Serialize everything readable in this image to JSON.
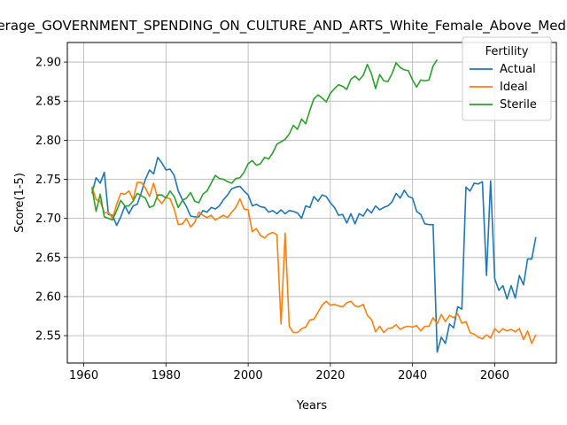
{
  "chart_data": {
    "type": "line",
    "title": "Average_GOVERNMENT_SPENDING_ON_CULTURE_AND_ARTS_White_Female_Above_Median",
    "xlabel": "Years",
    "ylabel": "Score(1-5)",
    "xlim": [
      1956,
      2075
    ],
    "ylim": [
      2.515,
      2.925
    ],
    "xticks": [
      1960,
      1980,
      2000,
      2020,
      2040,
      2060
    ],
    "yticks": [
      2.55,
      2.6,
      2.65,
      2.7,
      2.75,
      2.8,
      2.85,
      2.9
    ],
    "grid": true,
    "legend": {
      "title": "Fertility",
      "position": "top-right"
    },
    "series": [
      {
        "name": "Actual",
        "color": "#1f77b4",
        "x": [
          1962,
          1963,
          1964,
          1965,
          1966,
          1967,
          1968,
          1969,
          1970,
          1971,
          1972,
          1973,
          1974,
          1975,
          1976,
          1977,
          1978,
          1979,
          1980,
          1981,
          1982,
          1983,
          1984,
          1985,
          1986,
          1987,
          1988,
          1989,
          1990,
          1991,
          1992,
          1993,
          1994,
          1995,
          1996,
          1997,
          1998,
          1999,
          2000,
          2001,
          2002,
          2003,
          2004,
          2005,
          2006,
          2007,
          2008,
          2009,
          2010,
          2011,
          2012,
          2013,
          2014,
          2015,
          2016,
          2017,
          2018,
          2019,
          2020,
          2021,
          2022,
          2023,
          2024,
          2025,
          2026,
          2027,
          2028,
          2029,
          2030,
          2031,
          2032,
          2033,
          2034,
          2035,
          2036,
          2037,
          2038,
          2039,
          2040,
          2041,
          2042,
          2043,
          2044,
          2045,
          2046,
          2047,
          2048,
          2049,
          2050,
          2051,
          2052,
          2053,
          2054,
          2055,
          2056,
          2057,
          2058,
          2059,
          2060,
          2061,
          2062,
          2063,
          2064,
          2065,
          2066,
          2067,
          2068,
          2069,
          2070
        ],
        "y": [
          2.732,
          2.752,
          2.745,
          2.759,
          2.705,
          2.704,
          2.691,
          2.702,
          2.716,
          2.706,
          2.716,
          2.718,
          2.733,
          2.75,
          2.762,
          2.757,
          2.778,
          2.771,
          2.762,
          2.763,
          2.755,
          2.735,
          2.724,
          2.715,
          2.703,
          2.702,
          2.702,
          2.71,
          2.708,
          2.714,
          2.712,
          2.716,
          2.724,
          2.73,
          2.738,
          2.74,
          2.741,
          2.735,
          2.73,
          2.716,
          2.718,
          2.715,
          2.714,
          2.708,
          2.71,
          2.706,
          2.711,
          2.706,
          2.71,
          2.709,
          2.707,
          2.7,
          2.716,
          2.714,
          2.728,
          2.722,
          2.73,
          2.728,
          2.72,
          2.714,
          2.704,
          2.705,
          2.694,
          2.706,
          2.693,
          2.706,
          2.703,
          2.712,
          2.707,
          2.716,
          2.711,
          2.714,
          2.716,
          2.721,
          2.732,
          2.726,
          2.736,
          2.728,
          2.726,
          2.709,
          2.705,
          2.693,
          2.692,
          2.692,
          2.529,
          2.548,
          2.54,
          2.565,
          2.56,
          2.587,
          2.584,
          2.74,
          2.735,
          2.745,
          2.744,
          2.747,
          2.627,
          2.748,
          2.623,
          2.608,
          2.614,
          2.597,
          2.614,
          2.598,
          2.627,
          2.615,
          2.648,
          2.648,
          2.676
        ]
      },
      {
        "name": "Ideal",
        "color": "#ff7f0e",
        "x": [
          1962,
          1963,
          1964,
          1965,
          1966,
          1967,
          1968,
          1969,
          1970,
          1971,
          1972,
          1973,
          1974,
          1975,
          1976,
          1977,
          1978,
          1979,
          1980,
          1981,
          1982,
          1983,
          1984,
          1985,
          1986,
          1987,
          1988,
          1989,
          1990,
          1991,
          1992,
          1993,
          1994,
          1995,
          1996,
          1997,
          1998,
          1999,
          2000,
          2001,
          2002,
          2003,
          2004,
          2005,
          2006,
          2007,
          2008,
          2009,
          2010,
          2011,
          2012,
          2013,
          2014,
          2015,
          2016,
          2017,
          2018,
          2019,
          2020,
          2021,
          2022,
          2023,
          2024,
          2025,
          2026,
          2027,
          2028,
          2029,
          2030,
          2031,
          2032,
          2033,
          2034,
          2035,
          2036,
          2037,
          2038,
          2039,
          2040,
          2041,
          2042,
          2043,
          2044,
          2045,
          2046,
          2047,
          2048,
          2049,
          2050,
          2051,
          2052,
          2053,
          2054,
          2055,
          2056,
          2057,
          2058,
          2059,
          2060,
          2061,
          2062,
          2063,
          2064,
          2065,
          2066,
          2067,
          2068,
          2069,
          2070
        ],
        "y": [
          2.741,
          2.724,
          2.722,
          2.707,
          2.708,
          2.7,
          2.718,
          2.732,
          2.731,
          2.735,
          2.724,
          2.746,
          2.746,
          2.739,
          2.728,
          2.745,
          2.725,
          2.719,
          2.727,
          2.725,
          2.712,
          2.692,
          2.693,
          2.7,
          2.689,
          2.695,
          2.708,
          2.704,
          2.701,
          2.704,
          2.698,
          2.701,
          2.704,
          2.701,
          2.708,
          2.714,
          2.725,
          2.712,
          2.711,
          2.683,
          2.687,
          2.678,
          2.675,
          2.68,
          2.682,
          2.679,
          2.565,
          2.681,
          2.562,
          2.554,
          2.554,
          2.559,
          2.561,
          2.57,
          2.571,
          2.58,
          2.589,
          2.594,
          2.589,
          2.59,
          2.588,
          2.587,
          2.592,
          2.594,
          2.588,
          2.587,
          2.59,
          2.576,
          2.571,
          2.555,
          2.562,
          2.554,
          2.559,
          2.56,
          2.564,
          2.558,
          2.561,
          2.562,
          2.561,
          2.563,
          2.556,
          2.562,
          2.562,
          2.573,
          2.565,
          2.577,
          2.568,
          2.576,
          2.573,
          2.578,
          2.566,
          2.568,
          2.554,
          2.552,
          2.548,
          2.546,
          2.551,
          2.547,
          2.559,
          2.554,
          2.559,
          2.556,
          2.558,
          2.555,
          2.559,
          2.545,
          2.556,
          2.54,
          2.551
        ]
      },
      {
        "name": "Sterile",
        "color": "#2ca02c",
        "x": [
          1962,
          1963,
          1964,
          1965,
          1966,
          1967,
          1968,
          1969,
          1970,
          1971,
          1972,
          1973,
          1974,
          1975,
          1976,
          1977,
          1978,
          1979,
          1980,
          1981,
          1982,
          1983,
          1984,
          1985,
          1986,
          1987,
          1988,
          1989,
          1990,
          1991,
          1992,
          1993,
          1994,
          1995,
          1996,
          1997,
          1998,
          1999,
          2000,
          2001,
          2002,
          2003,
          2004,
          2005,
          2006,
          2007,
          2008,
          2009,
          2010,
          2011,
          2012,
          2013,
          2014,
          2015,
          2016,
          2017,
          2018,
          2019,
          2020,
          2021,
          2022,
          2023,
          2024,
          2025,
          2026,
          2027,
          2028,
          2029,
          2030,
          2031,
          2032,
          2033,
          2034,
          2035,
          2036,
          2037,
          2038,
          2039,
          2040,
          2041,
          2042,
          2043,
          2044,
          2045,
          2046
        ],
        "y": [
          2.739,
          2.709,
          2.731,
          2.702,
          2.7,
          2.698,
          2.71,
          2.723,
          2.716,
          2.716,
          2.722,
          2.732,
          2.729,
          2.726,
          2.714,
          2.716,
          2.73,
          2.73,
          2.726,
          2.735,
          2.728,
          2.714,
          2.723,
          2.726,
          2.733,
          2.722,
          2.72,
          2.731,
          2.735,
          2.745,
          2.755,
          2.751,
          2.75,
          2.747,
          2.745,
          2.751,
          2.752,
          2.759,
          2.77,
          2.774,
          2.768,
          2.77,
          2.778,
          2.776,
          2.784,
          2.795,
          2.798,
          2.801,
          2.808,
          2.819,
          2.814,
          2.827,
          2.821,
          2.838,
          2.853,
          2.858,
          2.854,
          2.849,
          2.86,
          2.866,
          2.871,
          2.869,
          2.865,
          2.878,
          2.882,
          2.877,
          2.883,
          2.897,
          2.885,
          2.866,
          2.884,
          2.876,
          2.875,
          2.885,
          2.899,
          2.893,
          2.89,
          2.889,
          2.877,
          2.868,
          2.877,
          2.876,
          2.877,
          2.895,
          2.903
        ]
      }
    ]
  }
}
